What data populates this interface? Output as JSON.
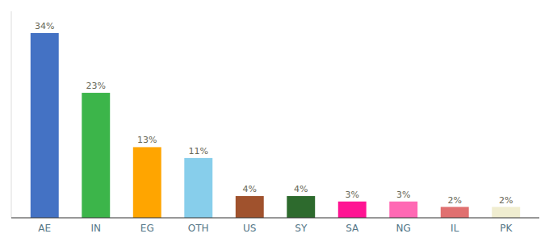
{
  "chart_data": {
    "type": "bar",
    "categories": [
      "AE",
      "IN",
      "EG",
      "OTH",
      "US",
      "SY",
      "SA",
      "NG",
      "IL",
      "PK"
    ],
    "values": [
      34,
      23,
      13,
      11,
      4,
      4,
      3,
      3,
      2,
      2
    ],
    "value_labels": [
      "34%",
      "23%",
      "13%",
      "11%",
      "4%",
      "4%",
      "3%",
      "3%",
      "2%",
      "2%"
    ],
    "colors": [
      "#4472C4",
      "#3CB54A",
      "#FFA500",
      "#87CEEB",
      "#A0522D",
      "#2D6A2D",
      "#FF1493",
      "#FF69B4",
      "#E07070",
      "#F0EDD0"
    ],
    "ylim": [
      0,
      38
    ],
    "data_labels": true,
    "tick_labels": "x",
    "grid": false
  }
}
